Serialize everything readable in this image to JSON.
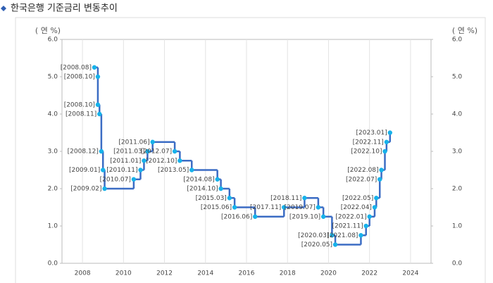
{
  "chart_data": {
    "type": "step",
    "title": "한국은행 기준금리 변동추이",
    "ylabel": "( 연 %)",
    "y2label": "( 연 %)",
    "x": [
      2008.58,
      2008.75,
      2008.75,
      2008.83,
      2008.92,
      2009.0,
      2009.08,
      2010.5,
      2010.83,
      2011.0,
      2011.17,
      2011.42,
      2012.5,
      2012.75,
      2013.33,
      2014.58,
      2014.75,
      2015.17,
      2015.42,
      2016.42,
      2017.83,
      2018.83,
      2019.5,
      2019.75,
      2020.17,
      2020.33,
      2021.58,
      2021.83,
      2022.0,
      2022.25,
      2022.33,
      2022.5,
      2022.58,
      2022.75,
      2022.83,
      2023.0
    ],
    "values": [
      5.25,
      5.0,
      4.25,
      4.0,
      3.0,
      2.5,
      2.0,
      2.25,
      2.5,
      2.75,
      3.0,
      3.25,
      3.0,
      2.75,
      2.5,
      2.25,
      2.0,
      1.75,
      1.5,
      1.25,
      1.5,
      1.75,
      1.5,
      1.25,
      0.75,
      0.5,
      0.75,
      1.0,
      1.25,
      1.5,
      1.75,
      2.25,
      2.5,
      3.0,
      3.25,
      3.5
    ],
    "point_labels": [
      "[2008.08]",
      "[2008.10]",
      "[2008.10]",
      "[2008.11]",
      "[2008.12]",
      "[2009.01]",
      "[2009.02]",
      "[2010.07]",
      "[2010.11]",
      "[2011.01]",
      "[2011.03]",
      "[2011.06]",
      "[2012.07]",
      "[2012.10]",
      "[2013.05]",
      "[2014.08]",
      "[2014.10]",
      "[2015.03]",
      "[2015.06]",
      "[2016.06]",
      "[2017.11]",
      "[2018.11]",
      "[2019.07]",
      "[2019.10]",
      "[2020.03]",
      "[2020.05]",
      "[2021.08]",
      "[2021.11]",
      "[2022.01]",
      "[2022.04]",
      "[2022.05]",
      "[2022.07]",
      "[2022.08]",
      "[2022.10]",
      "[2022.11]",
      "[2023.01]"
    ],
    "line_color": "#3b6cc4",
    "point_color": "#17b2ea",
    "xlim": [
      2007,
      2025
    ],
    "xticks": [
      2008,
      2010,
      2012,
      2014,
      2016,
      2018,
      2020,
      2022,
      2024
    ],
    "ylim": [
      0,
      6
    ],
    "yticks": [
      {
        "value": 0,
        "label": "0.0"
      },
      {
        "value": 1,
        "label": "1.0"
      },
      {
        "value": 2,
        "label": "2.0"
      },
      {
        "value": 3,
        "label": "3.0"
      },
      {
        "value": 4,
        "label": "4.0"
      },
      {
        "value": 5,
        "label": "5.0"
      },
      {
        "value": 6,
        "label": "6.0"
      }
    ],
    "y2lim": [
      0,
      6
    ],
    "y2ticks": [
      {
        "value": 0,
        "label": "0.0"
      },
      {
        "value": 1,
        "label": "1.0"
      },
      {
        "value": 2,
        "label": "2.0"
      },
      {
        "value": 3,
        "label": "3.0"
      },
      {
        "value": 4,
        "label": "4.0"
      },
      {
        "value": 5,
        "label": "5.0"
      },
      {
        "value": 6,
        "label": "6.0"
      }
    ],
    "grid": true
  }
}
